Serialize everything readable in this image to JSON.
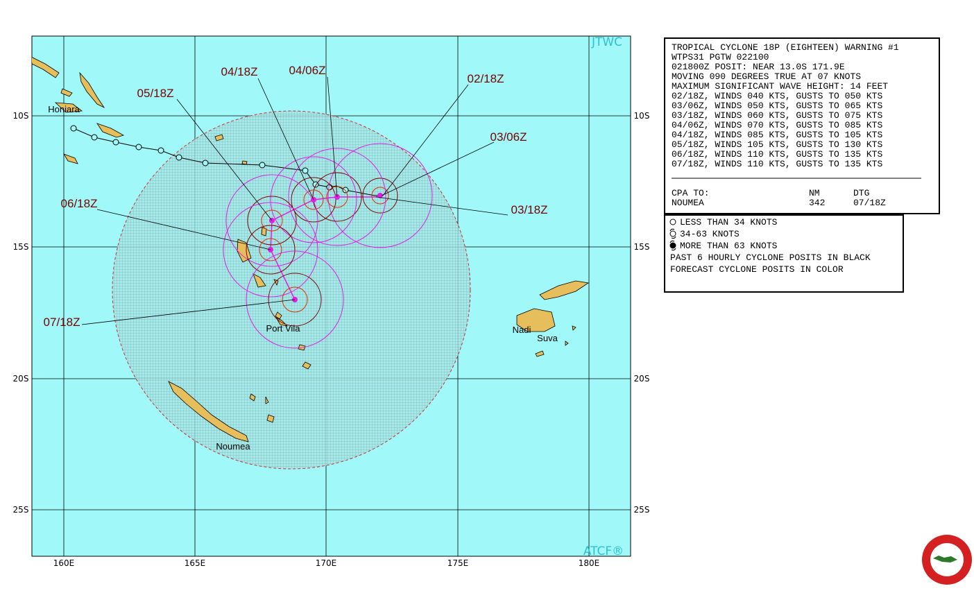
{
  "map": {
    "watermark_top": "JTWC",
    "watermark_bottom": "ATCF®",
    "lon_labels": [
      "160E",
      "165E",
      "170E",
      "175E",
      "180E"
    ],
    "lat_labels": [
      "10S",
      "15S",
      "20S",
      "25S"
    ],
    "places": [
      "Honiara",
      "Port Vila",
      "Nadi",
      "Suva",
      "Noumea"
    ],
    "time_labels": [
      "04/18Z",
      "04/06Z",
      "05/18Z",
      "02/18Z",
      "03/06Z",
      "06/18Z",
      "03/18Z",
      "07/18Z"
    ]
  },
  "warning": {
    "lines": [
      "TROPICAL CYCLONE 18P (EIGHTEEN) WARNING #1",
      "WTPS31 PGTW 022100",
      "021800Z POSIT: NEAR 13.0S 171.9E",
      "MOVING 090 DEGREES TRUE AT 07 KNOTS",
      "MAXIMUM SIGNIFICANT WAVE HEIGHT: 14 FEET",
      "02/18Z, WINDS 040 KTS, GUSTS TO 050 KTS",
      "03/06Z, WINDS 050 KTS, GUSTS TO 065 KTS",
      "03/18Z, WINDS 060 KTS, GUSTS TO 075 KTS",
      "04/06Z, WINDS 070 KTS, GUSTS TO 085 KTS",
      "04/18Z, WINDS 085 KTS, GUSTS TO 105 KTS",
      "05/18Z, WINDS 105 KTS, GUSTS TO 130 KTS",
      "06/18Z, WINDS 110 KTS, GUSTS TO 135 KTS",
      "07/18Z, WINDS 110 KTS, GUSTS TO 135 KTS"
    ],
    "cpa": {
      "header": [
        "CPA TO:",
        "NM",
        "DTG"
      ],
      "row": [
        "NOUMEA",
        "342",
        "07/18Z"
      ]
    }
  },
  "legend": {
    "lines": [
      "LESS THAN 34 KNOTS",
      "34-63 KNOTS",
      "MORE THAN 63 KNOTS",
      "PAST 6 HOURLY CYCLONE POSITS IN BLACK",
      "FORECAST CYCLONE POSITS IN COLOR"
    ]
  }
}
